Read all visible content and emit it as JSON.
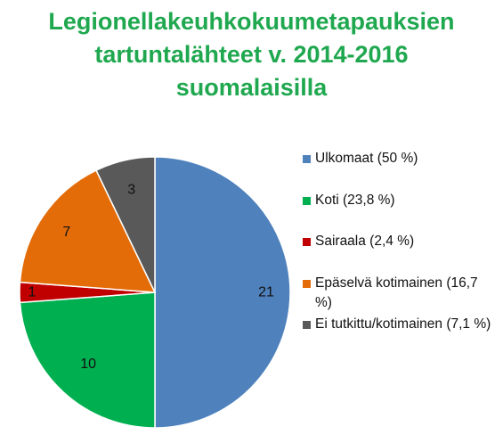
{
  "title_lines": [
    "Legionellakeuhkokuumetapauksien",
    "tartuntalähteet v. 2014-2016",
    "suomalaisilla"
  ],
  "chart_data": {
    "type": "pie",
    "title": "Legionellakeuhkokuumetapauksien tartuntalähteet v. 2014-2016 suomalaisilla",
    "legend_position": "right",
    "slices": [
      {
        "label": "Ulkomaat (50 %)",
        "value": 21,
        "color": "#4f81bd"
      },
      {
        "label": "Koti (23,8 %)",
        "value": 10,
        "color": "#00b050"
      },
      {
        "label": "Sairaala (2,4 %)",
        "value": 1,
        "color": "#c00000"
      },
      {
        "label": "Epäselvä kotimainen (16,7 %)",
        "value": 7,
        "color": "#e36c09"
      },
      {
        "label": "Ei tutkittu/kotimainen (7,1 %)",
        "value": 3,
        "color": "#595959"
      }
    ]
  }
}
